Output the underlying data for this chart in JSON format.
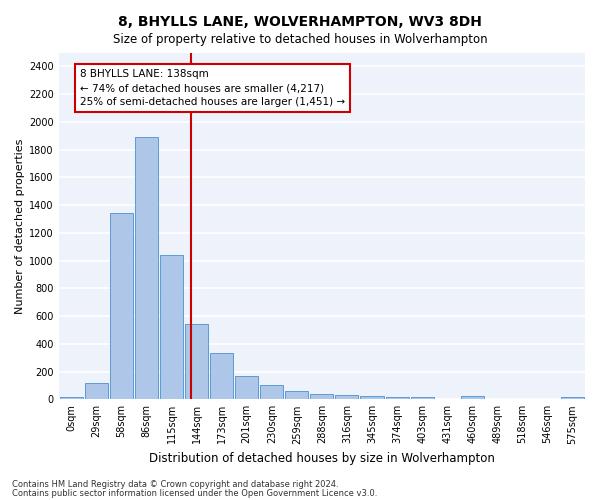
{
  "title": "8, BHYLLS LANE, WOLVERHAMPTON, WV3 8DH",
  "subtitle": "Size of property relative to detached houses in Wolverhampton",
  "xlabel": "Distribution of detached houses by size in Wolverhampton",
  "ylabel": "Number of detached properties",
  "footer1": "Contains HM Land Registry data © Crown copyright and database right 2024.",
  "footer2": "Contains public sector information licensed under the Open Government Licence v3.0.",
  "bar_labels": [
    "0sqm",
    "29sqm",
    "58sqm",
    "86sqm",
    "115sqm",
    "144sqm",
    "173sqm",
    "201sqm",
    "230sqm",
    "259sqm",
    "288sqm",
    "316sqm",
    "345sqm",
    "374sqm",
    "403sqm",
    "431sqm",
    "460sqm",
    "489sqm",
    "518sqm",
    "546sqm",
    "575sqm"
  ],
  "bar_values": [
    15,
    120,
    1340,
    1890,
    1040,
    540,
    335,
    165,
    105,
    60,
    35,
    30,
    25,
    20,
    15,
    0,
    25,
    0,
    0,
    0,
    15
  ],
  "bar_color": "#aec6e8",
  "bar_edge_color": "#5b9bd5",
  "background_color": "#eef2fa",
  "grid_color": "#ffffff",
  "ylim": [
    0,
    2500
  ],
  "yticks": [
    0,
    200,
    400,
    600,
    800,
    1000,
    1200,
    1400,
    1600,
    1800,
    2000,
    2200,
    2400
  ],
  "property_size": 138,
  "vline_color": "#cc0000",
  "annotation_text": "8 BHYLLS LANE: 138sqm\n← 74% of detached houses are smaller (4,217)\n25% of semi-detached houses are larger (1,451) →",
  "annotation_box_color": "#ffffff",
  "annotation_box_edge": "#cc0000",
  "bin_width": 29,
  "title_fontsize": 10,
  "subtitle_fontsize": 8.5,
  "ylabel_fontsize": 8,
  "xlabel_fontsize": 8.5,
  "tick_fontsize": 7,
  "annotation_fontsize": 7.5,
  "footer_fontsize": 6
}
